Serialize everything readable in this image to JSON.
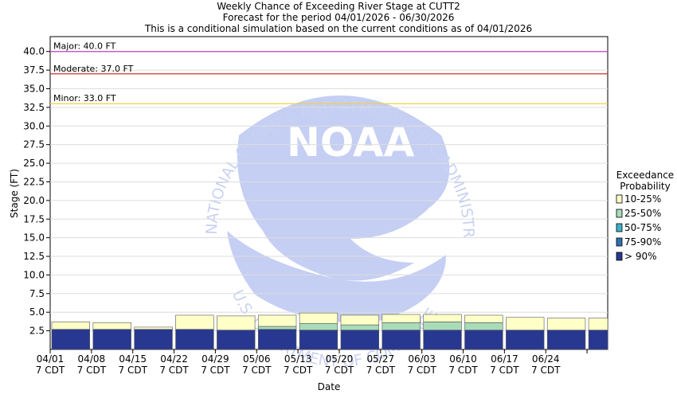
{
  "chart_data": {
    "type": "bar",
    "title": "Weekly Chance of Exceeding River Stage at CUTT2",
    "subtitle": "Forecast for the period 04/01/2026 - 06/30/2026",
    "subtitle2": "This is a conditional simulation based on the current conditions as of 04/01/2026",
    "xlabel": "Date",
    "ylabel": "Stage (FT)",
    "ylim": [
      0,
      42
    ],
    "yticks": [
      2.5,
      5.0,
      7.5,
      10.0,
      12.5,
      15.0,
      17.5,
      20.0,
      22.5,
      25.0,
      27.5,
      30.0,
      32.5,
      35.0,
      37.5,
      40.0
    ],
    "categories": [
      "04/01",
      "04/08",
      "04/15",
      "04/22",
      "04/29",
      "05/06",
      "05/13",
      "05/20",
      "05/27",
      "06/03",
      "06/10",
      "06/17",
      "06/24",
      ""
    ],
    "category_sublabel": "7 CDT",
    "legend_position": "right",
    "legend": {
      "title_line1": "Exceedance",
      "title_line2": "Probability",
      "entries": [
        {
          "label": "10-25%",
          "color": "#ffffc8"
        },
        {
          "label": "25-50%",
          "color": "#a8dcb8"
        },
        {
          "label": "50-75%",
          "color": "#40b0c8"
        },
        {
          "label": "75-90%",
          "color": "#3070b0"
        },
        {
          "label": "> 90%",
          "color": "#283890"
        }
      ]
    },
    "thresholds": [
      {
        "label": "Major: 40.0 FT",
        "value": 40.0,
        "color": "#c040c0"
      },
      {
        "label": "Moderate: 37.0 FT",
        "value": 37.0,
        "color": "#d03030"
      },
      {
        "label": "Minor: 33.0 FT",
        "value": 33.0,
        "color": "#f0d040"
      }
    ],
    "series": [
      {
        "name": "> 90%",
        "color": "#283890",
        "values": [
          2.7,
          2.7,
          2.7,
          2.7,
          2.6,
          2.7,
          2.6,
          2.6,
          2.6,
          2.6,
          2.6,
          2.6,
          2.6,
          2.6
        ]
      },
      {
        "name": "75-90%",
        "color": "#3070b0",
        "values": [
          2.7,
          2.7,
          2.7,
          2.7,
          2.6,
          2.7,
          2.6,
          2.6,
          2.6,
          2.6,
          2.6,
          2.6,
          2.6,
          2.6
        ]
      },
      {
        "name": "50-75%",
        "color": "#40b0c8",
        "values": [
          2.7,
          2.7,
          2.7,
          2.7,
          2.6,
          2.7,
          2.6,
          2.6,
          2.6,
          2.6,
          2.6,
          2.6,
          2.6,
          2.6
        ]
      },
      {
        "name": "25-50%",
        "color": "#a8dcb8",
        "values": [
          2.7,
          2.7,
          2.7,
          2.7,
          2.6,
          3.1,
          3.5,
          3.3,
          3.6,
          3.7,
          3.6,
          2.6,
          2.6,
          2.6
        ]
      },
      {
        "name": "10-25%",
        "color": "#ffffc8",
        "values": [
          3.7,
          3.6,
          3.0,
          4.6,
          4.5,
          4.6,
          4.9,
          4.6,
          4.7,
          4.7,
          4.6,
          4.3,
          4.2,
          4.2
        ]
      }
    ],
    "grid": true
  },
  "watermark": {
    "arc_top": "NATIONAL OCEANIC AND ATMOSPHERIC ADMINISTRATION",
    "arc_bottom": "U.S. DEPARTMENT OF COMMERCE",
    "center": "NOAA"
  }
}
